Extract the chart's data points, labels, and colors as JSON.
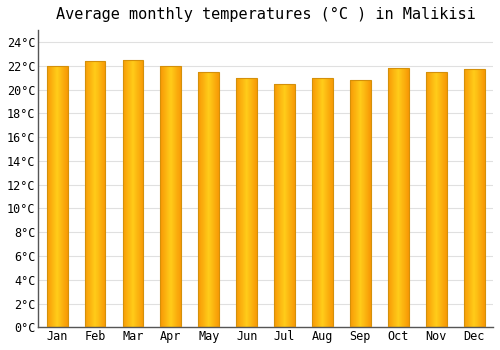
{
  "title": "Average monthly temperatures (°C ) in Malikisi",
  "months": [
    "Jan",
    "Feb",
    "Mar",
    "Apr",
    "May",
    "Jun",
    "Jul",
    "Aug",
    "Sep",
    "Oct",
    "Nov",
    "Dec"
  ],
  "values": [
    22.0,
    22.4,
    22.5,
    22.0,
    21.5,
    21.0,
    20.5,
    21.0,
    20.8,
    21.8,
    21.5,
    21.7
  ],
  "bar_color_center": "#FFCC00",
  "bar_color_edge": "#F5A000",
  "bar_edge_color": "#D4900A",
  "background_color": "#FFFFFF",
  "plot_bg_color": "#FFFFFF",
  "grid_color": "#E0E0E0",
  "spine_color": "#555555",
  "ylim": [
    0,
    25
  ],
  "ytick_step": 2,
  "title_fontsize": 11,
  "tick_fontsize": 8.5,
  "font_family": "monospace",
  "bar_width": 0.55
}
